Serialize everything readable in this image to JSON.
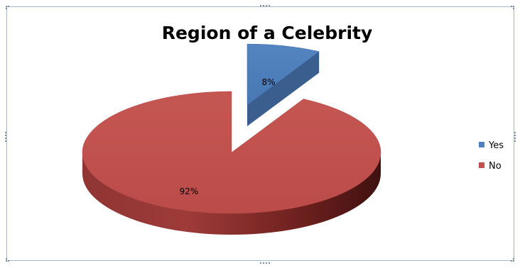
{
  "chart_data": {
    "type": "pie",
    "title": "Region of a Celebrity",
    "categories": [
      "Yes",
      "No"
    ],
    "values": [
      8,
      92
    ],
    "data_labels": [
      "8%",
      "92%"
    ],
    "exploded": "Yes",
    "style": "3d",
    "legend_position": "right",
    "colors": {
      "Yes": "#4f81bd",
      "No": "#c0504d"
    }
  },
  "colors": {
    "frame_border": "#a6b8cc",
    "handle": "#7f8fa6",
    "yes_top": "#4f81bd",
    "yes_side": "#3a5f8f",
    "no_top": "#c0504d",
    "no_side_light": "#9e3b39",
    "no_side_dark": "#4a1413"
  }
}
